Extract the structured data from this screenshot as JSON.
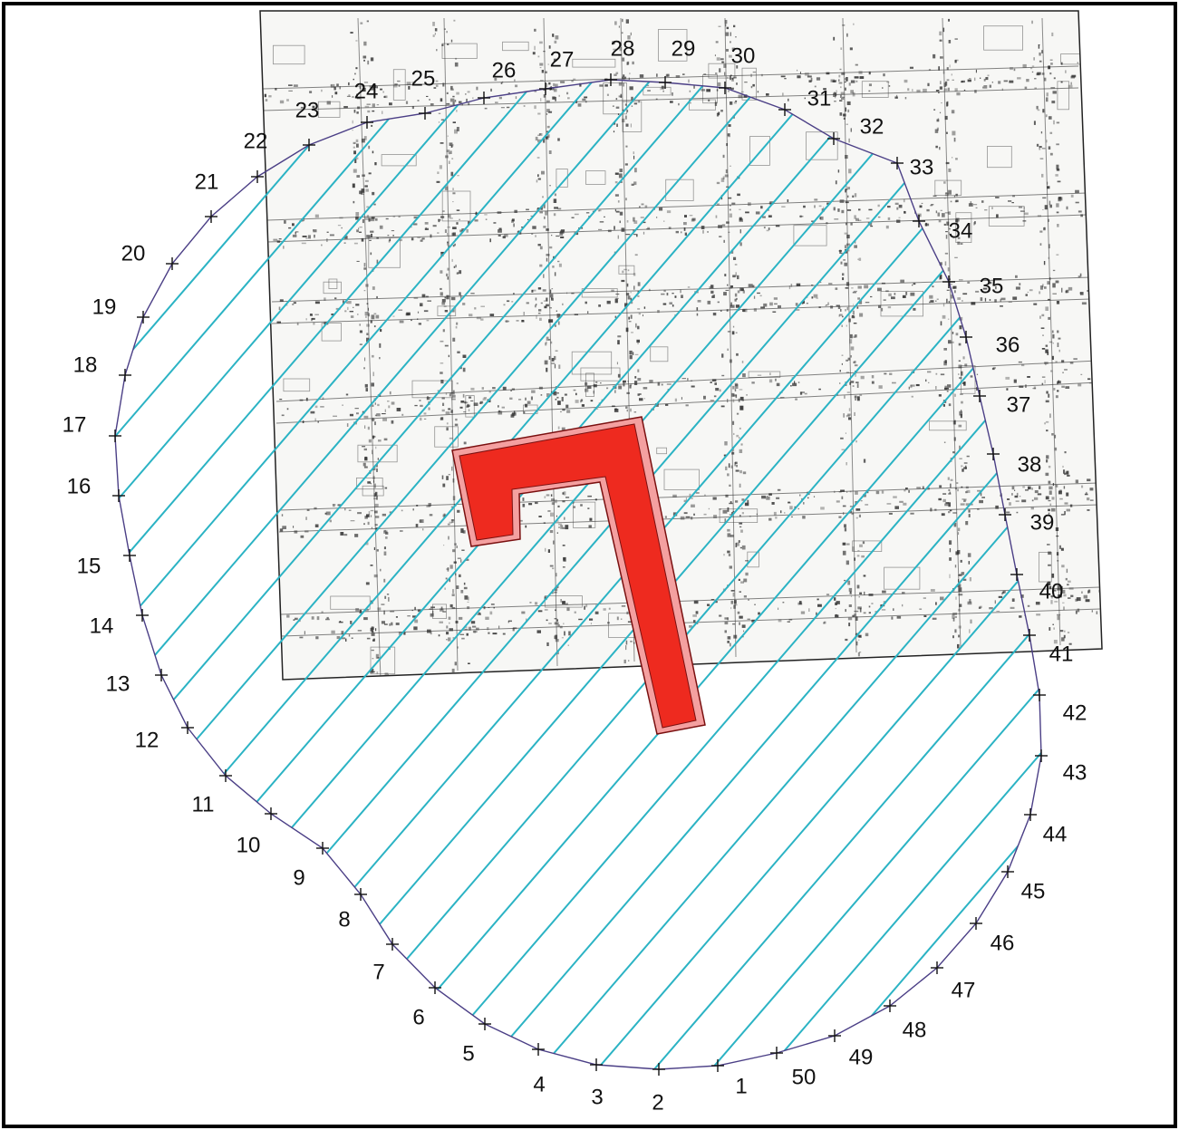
{
  "colors": {
    "boundary": "#4b3f86",
    "hatch": "#2bb3c4",
    "building_fill": "#ee2a1f",
    "building_outline": "#f4a0a0",
    "ink": "#111111",
    "map_ink": "#333333"
  },
  "boundary_points": [
    {
      "n": "1"
    },
    {
      "n": "2"
    },
    {
      "n": "3"
    },
    {
      "n": "4"
    },
    {
      "n": "5"
    },
    {
      "n": "6"
    },
    {
      "n": "7"
    },
    {
      "n": "8"
    },
    {
      "n": "9"
    },
    {
      "n": "10"
    },
    {
      "n": "11"
    },
    {
      "n": "12"
    },
    {
      "n": "13"
    },
    {
      "n": "14"
    },
    {
      "n": "15"
    },
    {
      "n": "16"
    },
    {
      "n": "17"
    },
    {
      "n": "18"
    },
    {
      "n": "19"
    },
    {
      "n": "20"
    },
    {
      "n": "21"
    },
    {
      "n": "22"
    },
    {
      "n": "23"
    },
    {
      "n": "24"
    },
    {
      "n": "25"
    },
    {
      "n": "26"
    },
    {
      "n": "27"
    },
    {
      "n": "28"
    },
    {
      "n": "29"
    },
    {
      "n": "30"
    },
    {
      "n": "31"
    },
    {
      "n": "32"
    },
    {
      "n": "33"
    },
    {
      "n": "34"
    },
    {
      "n": "35"
    },
    {
      "n": "36"
    },
    {
      "n": "37"
    },
    {
      "n": "38"
    },
    {
      "n": "39"
    },
    {
      "n": "40"
    },
    {
      "n": "41"
    },
    {
      "n": "42"
    },
    {
      "n": "43"
    },
    {
      "n": "44"
    },
    {
      "n": "45"
    },
    {
      "n": "46"
    },
    {
      "n": "47"
    },
    {
      "n": "48"
    },
    {
      "n": "49"
    },
    {
      "n": "50"
    }
  ]
}
